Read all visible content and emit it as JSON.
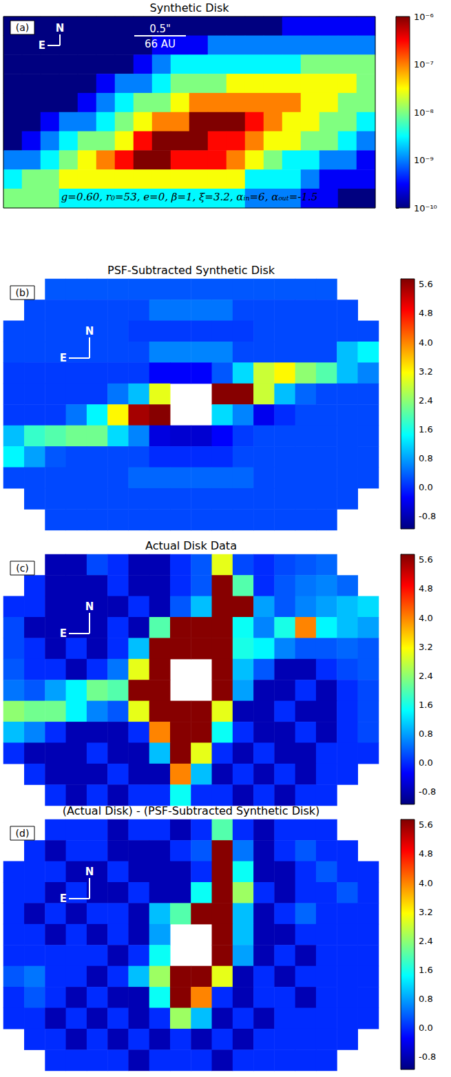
{
  "chart_data": [
    {
      "type": "heatmap",
      "title": "Synthetic Disk",
      "panel_label": "(a)",
      "compass": [
        "N",
        "E"
      ],
      "scale_bar": [
        "0.5\"",
        "66 AU"
      ],
      "parameters": "g=0.60, r₀=53, e=0, β=1, ξ=3.2, αᵢₙ=6, αₒᵤₜ=-1.5",
      "color": "jet",
      "log": true,
      "colorbar": {
        "lim": [
          1e-10,
          1e-06
        ],
        "ticks": [
          {
            "value": 1e-10,
            "label": "10⁻¹⁰"
          },
          {
            "value": 1e-09,
            "label": "10⁻⁹"
          },
          {
            "value": 1e-08,
            "label": "10⁻⁸"
          },
          {
            "value": 1e-07,
            "label": "10⁻⁷"
          },
          {
            "value": 1e-06,
            "label": "10⁻⁶"
          }
        ]
      },
      "cells": [
        [
          1e-10,
          1e-10,
          1e-10,
          1e-10,
          1e-10,
          1e-10,
          1e-10,
          1e-10,
          1e-10,
          1e-10,
          1e-10,
          1e-10,
          1e-10,
          1e-10,
          1e-10,
          3e-10,
          3e-10,
          3e-10,
          3e-10,
          3e-10
        ],
        [
          1e-10,
          1e-10,
          1e-10,
          1e-10,
          1e-10,
          1e-10,
          1e-10,
          1e-10,
          3e-10,
          3e-10,
          3e-10,
          1e-09,
          1e-09,
          1e-09,
          1e-09,
          1e-09,
          1e-09,
          1e-09,
          1e-09,
          1e-09
        ],
        [
          1e-10,
          1e-10,
          1e-10,
          1e-10,
          1e-10,
          1e-10,
          1e-10,
          3e-10,
          1e-09,
          3e-09,
          3e-09,
          3e-09,
          3e-09,
          3e-09,
          3e-09,
          3e-09,
          1e-08,
          1e-08,
          1e-08,
          1e-08
        ],
        [
          1e-10,
          1e-10,
          1e-10,
          1e-10,
          1e-10,
          3e-10,
          1e-09,
          1e-09,
          3e-09,
          1e-08,
          1e-08,
          1e-08,
          3e-08,
          3e-08,
          3e-08,
          3e-08,
          3e-08,
          3e-08,
          3e-08,
          1e-08
        ],
        [
          1e-10,
          1e-10,
          1e-10,
          1e-10,
          3e-10,
          1e-09,
          3e-09,
          1e-08,
          1e-08,
          3e-08,
          1e-07,
          1e-07,
          1e-07,
          1e-07,
          1e-07,
          1e-07,
          3e-08,
          3e-08,
          1e-08,
          1e-08
        ],
        [
          1e-10,
          1e-10,
          3e-10,
          1e-09,
          1e-09,
          3e-09,
          1e-08,
          3e-08,
          1e-07,
          1e-07,
          1e-06,
          1e-06,
          1e-06,
          3e-07,
          1e-07,
          3e-08,
          3e-08,
          1e-08,
          1e-08,
          3e-09
        ],
        [
          1e-10,
          3e-10,
          1e-09,
          3e-09,
          1e-08,
          1e-08,
          3e-08,
          3e-07,
          1e-06,
          1e-06,
          1e-06,
          3e-07,
          3e-07,
          1e-07,
          3e-08,
          3e-08,
          1e-08,
          1e-08,
          3e-09,
          1e-09
        ],
        [
          1e-09,
          1e-09,
          3e-09,
          1e-08,
          3e-08,
          1e-07,
          3e-07,
          1e-06,
          1e-06,
          3e-07,
          3e-07,
          3e-07,
          1e-07,
          3e-08,
          1e-08,
          3e-09,
          3e-09,
          1e-09,
          1e-09,
          3e-10
        ],
        [
          3e-09,
          1e-08,
          1e-08,
          3e-08,
          3e-08,
          3e-08,
          3e-08,
          3e-08,
          3e-08,
          3e-08,
          3e-08,
          3e-08,
          3e-08,
          3e-09,
          3e-09,
          3e-09,
          1e-09,
          3e-10,
          3e-10,
          3e-10
        ],
        [
          1e-08,
          1e-08,
          1e-08,
          3e-09,
          3e-09,
          3e-09,
          3e-09,
          3e-09,
          3e-09,
          3e-09,
          3e-09,
          3e-09,
          3e-09,
          1e-09,
          1e-09,
          1e-09,
          3e-10,
          3e-10,
          1e-10,
          1e-10
        ]
      ]
    },
    {
      "type": "heatmap",
      "title": "PSF-Subtracted Synthetic Disk",
      "panel_label": "(b)",
      "compass": [
        "N",
        "E"
      ],
      "color": "jet",
      "colorbar": {
        "lim": [
          -1.15,
          5.75
        ],
        "ticks": [
          -0.8,
          {
            "value": 0,
            "label": "0.0"
          },
          0.8,
          1.6,
          2.4,
          3.2,
          {
            "value": 4,
            "label": "4.0"
          },
          4.8,
          5.6
        ]
      },
      "cells": [
        [
          null,
          null,
          0.3,
          0.3,
          0.3,
          0.3,
          0.3,
          0.3,
          0.3,
          0.3,
          0.3,
          0.3,
          0.3,
          0.3,
          0.3,
          0.3,
          null,
          null
        ],
        [
          null,
          0.2,
          0.2,
          0.2,
          0.2,
          0.2,
          0.2,
          0.5,
          0.5,
          0.5,
          0.5,
          0.2,
          0.2,
          0.2,
          0.2,
          0.2,
          0.2,
          null
        ],
        [
          0.2,
          0.2,
          0.2,
          0.2,
          0.2,
          0.2,
          0.1,
          0.1,
          0.1,
          0.1,
          0.1,
          0.1,
          0.2,
          0.2,
          0.2,
          0.2,
          0.2,
          0.2
        ],
        [
          0.2,
          0.2,
          0.2,
          0.2,
          0.2,
          0.2,
          0.2,
          0.6,
          0.6,
          0.6,
          0.6,
          0.2,
          0.2,
          0.2,
          0.2,
          0.2,
          1.0,
          1.4
        ],
        [
          0.1,
          0.1,
          0.1,
          0.1,
          0.1,
          0.1,
          0.1,
          -0.3,
          -0.3,
          -0.3,
          0.3,
          1.2,
          2.8,
          3.2,
          2.4,
          2.0,
          1.0,
          0.6
        ],
        [
          0.1,
          0.1,
          0.1,
          0.1,
          0.1,
          0.5,
          1.0,
          3.0,
          null,
          null,
          5.7,
          5.7,
          2.8,
          1.0,
          0.4,
          0.2,
          0.2,
          0.2
        ],
        [
          0.1,
          0.1,
          0.1,
          0.5,
          1.4,
          3.2,
          5.5,
          5.7,
          null,
          null,
          1.2,
          0.6,
          -0.4,
          0.0,
          0.2,
          0.2,
          0.2,
          0.2
        ],
        [
          1.0,
          1.8,
          2.0,
          2.2,
          2.2,
          1.2,
          0.6,
          -0.5,
          -0.6,
          -0.6,
          -0.3,
          0.1,
          0.2,
          0.2,
          0.2,
          0.2,
          0.2,
          0.2
        ],
        [
          1.4,
          0.8,
          0.3,
          0.2,
          0.2,
          0.2,
          0.2,
          0.0,
          0.0,
          0.0,
          0.0,
          0.2,
          0.2,
          0.2,
          0.2,
          0.2,
          0.2,
          0.2
        ],
        [
          0.2,
          0.2,
          0.2,
          0.2,
          0.2,
          0.2,
          0.4,
          0.4,
          0.4,
          0.4,
          0.4,
          0.4,
          0.2,
          0.2,
          0.2,
          0.2,
          0.2,
          0.2
        ],
        [
          null,
          0.2,
          0.2,
          0.2,
          0.2,
          0.2,
          0.2,
          0.2,
          0.2,
          0.2,
          0.2,
          0.2,
          0.2,
          0.2,
          0.2,
          0.2,
          0.2,
          null
        ],
        [
          null,
          null,
          0.2,
          0.2,
          0.2,
          0.2,
          0.2,
          0.2,
          0.2,
          0.2,
          0.2,
          0.2,
          0.2,
          0.2,
          0.2,
          0.2,
          null,
          null
        ]
      ]
    },
    {
      "type": "heatmap",
      "title": "Actual Disk Data",
      "panel_label": "(c)",
      "compass": [
        "N",
        "E"
      ],
      "color": "jet",
      "colorbar": {
        "lim": [
          -1.15,
          5.75
        ],
        "ticks": [
          -0.8,
          {
            "value": 0,
            "label": "0.0"
          },
          0.8,
          1.6,
          2.4,
          3.2,
          {
            "value": 4,
            "label": "4.0"
          },
          4.8,
          5.6
        ]
      },
      "cells": [
        [
          null,
          null,
          -0.8,
          -0.8,
          0.2,
          0.0,
          -0.8,
          -0.8,
          0.0,
          0.3,
          3.0,
          0.2,
          0.0,
          0.2,
          0.3,
          0.4,
          null,
          null
        ],
        [
          null,
          0.0,
          -0.8,
          -0.8,
          -0.8,
          0.0,
          -0.8,
          -0.8,
          0.0,
          0.3,
          5.7,
          2.0,
          0.0,
          0.3,
          0.5,
          0.6,
          0.4,
          null
        ],
        [
          0.0,
          0.0,
          -0.8,
          -0.8,
          -0.8,
          -0.8,
          0.0,
          -0.8,
          0.3,
          1.0,
          5.7,
          5.7,
          0.8,
          0.3,
          0.6,
          0.8,
          1.0,
          1.2
        ],
        [
          0.2,
          -0.8,
          -0.8,
          -0.8,
          -0.8,
          0.0,
          -0.8,
          2.0,
          5.7,
          5.7,
          5.7,
          1.5,
          0.6,
          1.6,
          4.0,
          1.4,
          1.0,
          0.8
        ],
        [
          0.2,
          0.0,
          -0.8,
          0.0,
          -0.8,
          0.0,
          1.0,
          5.7,
          5.7,
          5.7,
          5.7,
          1.6,
          1.4,
          0.6,
          0.3,
          0.3,
          0.4,
          0.3
        ],
        [
          0.3,
          0.0,
          0.0,
          -0.8,
          0.0,
          0.5,
          3.0,
          5.7,
          null,
          null,
          5.7,
          1.0,
          0.3,
          -0.8,
          -0.8,
          0.0,
          0.2,
          0.3
        ],
        [
          0.5,
          0.3,
          0.8,
          1.4,
          2.2,
          2.0,
          5.7,
          5.7,
          null,
          null,
          5.7,
          0.8,
          -0.8,
          -0.8,
          0.0,
          -0.8,
          0.0,
          0.2
        ],
        [
          2.4,
          2.2,
          2.2,
          1.4,
          0.6,
          0.3,
          3.0,
          5.7,
          5.7,
          5.7,
          3.0,
          -0.8,
          -0.8,
          0.0,
          -0.8,
          -0.8,
          0.0,
          0.2
        ],
        [
          1.0,
          0.6,
          0.0,
          -0.8,
          -0.8,
          -0.8,
          0.0,
          4.0,
          5.7,
          5.7,
          1.5,
          0.0,
          -0.8,
          -0.8,
          0.0,
          -0.8,
          0.0,
          0.2
        ],
        [
          0.0,
          -0.8,
          -0.8,
          -0.8,
          0.0,
          -0.8,
          -0.8,
          1.0,
          5.7,
          3.0,
          0.0,
          -0.8,
          0.0,
          -0.8,
          -0.8,
          0.0,
          0.0,
          0.0
        ],
        [
          null,
          0.0,
          -0.8,
          -0.8,
          -0.8,
          0.0,
          -0.8,
          -0.8,
          4.0,
          1.0,
          -0.8,
          0.0,
          -0.8,
          0.0,
          -0.8,
          0.0,
          0.0,
          null
        ],
        [
          null,
          null,
          0.0,
          -0.8,
          0.0,
          -0.8,
          0.0,
          0.0,
          1.5,
          0.0,
          0.0,
          -0.8,
          0.0,
          -0.8,
          0.0,
          0.0,
          null,
          null
        ]
      ]
    },
    {
      "type": "heatmap",
      "title": "(Actual Disk) - (PSF-Subtracted Synthetic Disk)",
      "panel_label": "(d)",
      "compass": [
        "N",
        "E"
      ],
      "color": "jet",
      "colorbar": {
        "lim": [
          -1.15,
          5.75
        ],
        "ticks": [
          -0.8,
          {
            "value": 0,
            "label": "0.0"
          },
          0.8,
          1.6,
          2.4,
          3.2,
          {
            "value": 4,
            "label": "4.0"
          },
          4.8,
          5.6
        ]
      },
      "cells": [
        [
          null,
          null,
          0.0,
          0.0,
          0.0,
          -0.8,
          0.0,
          0.0,
          -0.8,
          0.0,
          2.0,
          0.0,
          -0.8,
          0.0,
          0.0,
          0.0,
          null,
          null
        ],
        [
          null,
          0.0,
          -0.8,
          0.0,
          0.0,
          -0.8,
          -0.8,
          -0.8,
          0.0,
          0.3,
          5.7,
          0.5,
          -0.8,
          0.0,
          0.3,
          0.0,
          0.0,
          null
        ],
        [
          0.0,
          0.0,
          0.0,
          -0.8,
          -0.8,
          0.0,
          -0.8,
          -0.8,
          -0.8,
          0.0,
          5.7,
          1.5,
          -0.8,
          -0.8,
          0.0,
          0.3,
          0.0,
          0.0
        ],
        [
          0.0,
          0.0,
          -0.8,
          0.0,
          -0.8,
          -0.8,
          0.0,
          -0.8,
          -0.8,
          1.5,
          5.7,
          2.5,
          0.0,
          -0.8,
          0.0,
          0.0,
          0.3,
          0.0
        ],
        [
          0.0,
          -0.8,
          0.0,
          -0.8,
          0.0,
          0.0,
          -0.8,
          1.0,
          2.0,
          5.7,
          5.7,
          1.0,
          -0.8,
          0.0,
          0.4,
          0.0,
          0.0,
          0.0
        ],
        [
          0.0,
          0.0,
          -0.8,
          0.0,
          -0.8,
          0.0,
          -0.8,
          0.8,
          null,
          null,
          5.7,
          1.0,
          -0.8,
          -0.8,
          0.0,
          0.0,
          0.0,
          0.0
        ],
        [
          0.0,
          0.0,
          0.0,
          0.0,
          0.0,
          -0.8,
          0.0,
          1.5,
          null,
          null,
          5.7,
          0.8,
          -0.8,
          0.0,
          -0.8,
          0.0,
          0.0,
          0.0
        ],
        [
          0.3,
          0.5,
          0.0,
          0.0,
          -0.8,
          0.0,
          1.0,
          2.5,
          5.7,
          5.7,
          3.0,
          -0.8,
          0.0,
          -0.8,
          0.0,
          0.0,
          0.0,
          0.0
        ],
        [
          0.0,
          0.3,
          0.0,
          -0.8,
          0.0,
          -0.8,
          -0.8,
          1.5,
          5.7,
          4.0,
          0.0,
          -0.8,
          0.0,
          0.0,
          -0.8,
          0.0,
          0.0,
          0.0
        ],
        [
          0.0,
          0.0,
          -0.8,
          0.0,
          -0.8,
          0.0,
          -0.8,
          0.0,
          2.5,
          1.0,
          -0.8,
          0.0,
          -0.8,
          0.0,
          0.0,
          0.0,
          0.0,
          0.0
        ],
        [
          null,
          0.0,
          0.0,
          -0.8,
          0.0,
          -0.8,
          0.0,
          -0.8,
          0.0,
          -0.8,
          0.0,
          -0.8,
          0.0,
          0.0,
          0.0,
          0.0,
          0.0,
          null
        ],
        [
          null,
          null,
          0.0,
          0.0,
          0.0,
          0.0,
          -0.8,
          0.0,
          0.0,
          0.0,
          -0.8,
          0.0,
          0.0,
          0.0,
          0.0,
          0.0,
          null,
          null
        ]
      ]
    }
  ]
}
